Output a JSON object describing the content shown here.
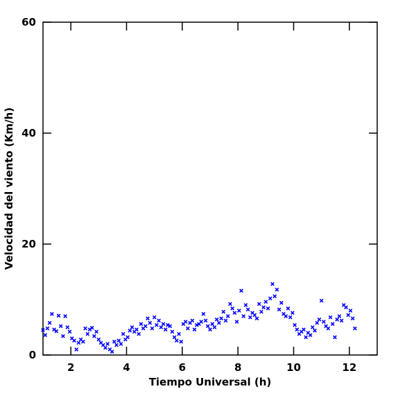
{
  "chart_data": {
    "type": "scatter",
    "xlabel": "Tiempo Universal (h)",
    "ylabel": "Velocidad del viento (Km/h)",
    "xlim": [
      1,
      13
    ],
    "ylim": [
      0,
      60
    ],
    "xticks": [
      2,
      4,
      6,
      8,
      10,
      12
    ],
    "yticks": [
      0,
      20,
      40,
      60
    ],
    "series": [
      {
        "color": "#0000ff",
        "x": [
          1.0,
          1.08,
          1.16,
          1.24,
          1.32,
          1.4,
          1.48,
          1.56,
          1.64,
          1.72,
          1.8,
          1.88,
          1.96,
          2.04,
          2.12,
          2.2,
          2.28,
          2.36,
          2.44,
          2.52,
          2.6,
          2.68,
          2.76,
          2.84,
          2.92,
          3.0,
          3.08,
          3.16,
          3.24,
          3.32,
          3.4,
          3.48,
          3.56,
          3.64,
          3.72,
          3.8,
          3.88,
          3.96,
          4.04,
          4.12,
          4.2,
          4.28,
          4.36,
          4.44,
          4.52,
          4.6,
          4.68,
          4.76,
          4.84,
          4.92,
          5.0,
          5.08,
          5.16,
          5.24,
          5.32,
          5.4,
          5.48,
          5.56,
          5.64,
          5.72,
          5.8,
          5.88,
          5.96,
          6.04,
          6.12,
          6.2,
          6.28,
          6.36,
          6.44,
          6.52,
          6.6,
          6.68,
          6.76,
          6.84,
          6.92,
          7.0,
          7.08,
          7.16,
          7.24,
          7.32,
          7.4,
          7.48,
          7.56,
          7.64,
          7.72,
          7.8,
          7.88,
          7.96,
          8.04,
          8.12,
          8.2,
          8.28,
          8.36,
          8.44,
          8.52,
          8.6,
          8.68,
          8.76,
          8.84,
          8.92,
          9.0,
          9.08,
          9.16,
          9.24,
          9.32,
          9.4,
          9.48,
          9.56,
          9.64,
          9.72,
          9.8,
          9.88,
          9.96,
          10.04,
          10.12,
          10.2,
          10.28,
          10.36,
          10.44,
          10.52,
          10.6,
          10.68,
          10.76,
          10.84,
          10.92,
          11.0,
          11.08,
          11.16,
          11.24,
          11.32,
          11.4,
          11.48,
          11.56,
          11.64,
          11.72,
          11.8,
          11.88,
          11.96,
          12.04,
          12.12,
          12.2
        ],
        "values": [
          4.5,
          3.6,
          4.8,
          5.8,
          7.4,
          4.6,
          4.3,
          7.1,
          5.2,
          3.4,
          7.0,
          5.0,
          4.2,
          3.0,
          2.6,
          1.0,
          2.2,
          2.8,
          2.4,
          4.8,
          3.8,
          4.6,
          4.9,
          3.4,
          4.2,
          2.8,
          2.2,
          1.8,
          1.3,
          2.0,
          1.0,
          0.6,
          2.4,
          1.8,
          2.6,
          2.0,
          3.8,
          2.8,
          3.2,
          4.4,
          5.0,
          4.2,
          4.6,
          3.8,
          5.6,
          4.8,
          5.2,
          6.6,
          5.8,
          4.8,
          6.8,
          5.4,
          6.2,
          5.0,
          5.6,
          4.6,
          5.4,
          5.2,
          4.2,
          3.2,
          2.6,
          3.8,
          2.4,
          5.6,
          6.0,
          4.8,
          5.8,
          6.2,
          4.6,
          5.4,
          5.6,
          6.0,
          7.4,
          6.2,
          5.2,
          4.6,
          5.6,
          5.0,
          6.4,
          5.8,
          6.6,
          7.8,
          6.2,
          7.0,
          9.2,
          8.4,
          7.6,
          6.0,
          8.0,
          11.6,
          7.0,
          9.0,
          8.2,
          6.8,
          7.6,
          7.2,
          6.6,
          9.2,
          7.8,
          8.6,
          9.6,
          8.4,
          10.2,
          12.8,
          10.6,
          11.8,
          8.2,
          9.4,
          7.4,
          7.0,
          8.4,
          6.8,
          7.6,
          5.4,
          4.6,
          3.8,
          4.2,
          4.6,
          3.2,
          4.0,
          3.6,
          5.0,
          4.4,
          5.8,
          6.4,
          9.8,
          6.0,
          5.2,
          4.8,
          6.8,
          5.6,
          3.2,
          6.4,
          7.0,
          6.2,
          9.0,
          8.6,
          7.2,
          8.0,
          6.6,
          4.8
        ]
      }
    ]
  }
}
